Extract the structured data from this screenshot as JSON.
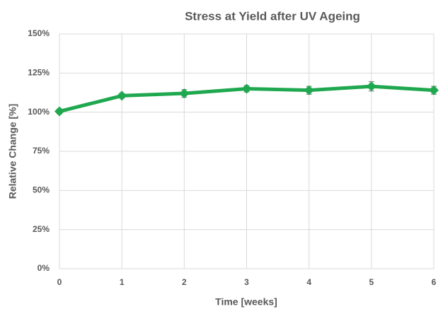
{
  "chart_data": {
    "type": "line",
    "title": "Stress at Yield after UV Ageing",
    "x_label": "Time [weeks]",
    "y_label": "Relative Change [%]",
    "x": [
      0,
      1,
      2,
      3,
      4,
      5,
      6
    ],
    "series": [
      {
        "name": "Stress at Yield",
        "color": "#1fa84f",
        "values": [
          100.5,
          110.5,
          112,
          115,
          114,
          116.5,
          114
        ],
        "errors": [
          1.5,
          1.5,
          2.5,
          2,
          2.5,
          3,
          2.5
        ]
      }
    ],
    "xlim": [
      0,
      6
    ],
    "xticks": [
      0,
      1,
      2,
      3,
      4,
      5,
      6
    ],
    "ylim": [
      0,
      150
    ],
    "yticks": [
      {
        "value": 0,
        "label": "0%"
      },
      {
        "value": 25,
        "label": "25%"
      },
      {
        "value": 50,
        "label": "50%"
      },
      {
        "value": 75,
        "label": "75%"
      },
      {
        "value": 100,
        "label": "100%"
      },
      {
        "value": 125,
        "label": "125%"
      },
      {
        "value": 150,
        "label": "150%"
      }
    ],
    "grid": true
  }
}
